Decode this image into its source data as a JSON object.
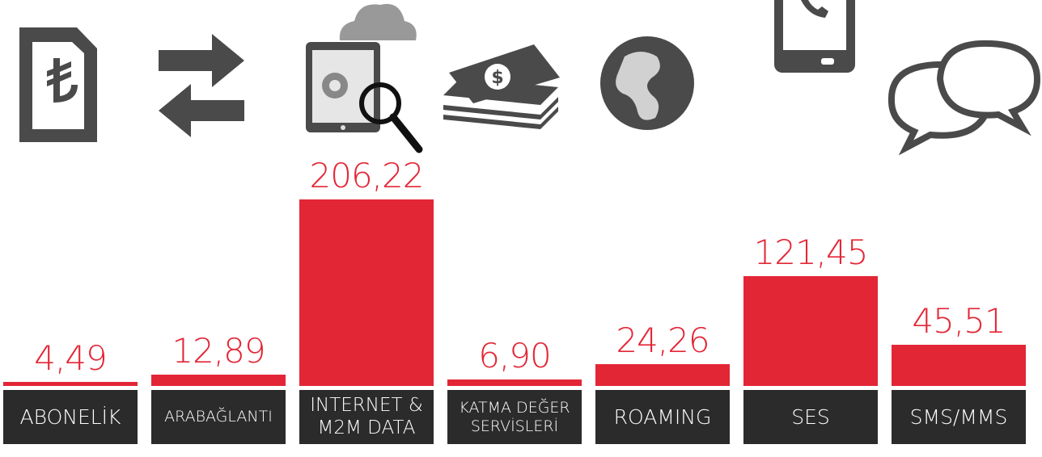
{
  "chart_data": {
    "type": "bar",
    "categories": [
      "ABONELİK",
      "ARABAĞLANTI",
      "INTERNET &\nM2M DATA",
      "KATMA DEĞER\nSERVİSLERİ",
      "ROAMING",
      "SES",
      "SMS/MMS"
    ],
    "values": [
      4.49,
      12.89,
      206.22,
      6.9,
      24.26,
      121.45,
      45.51
    ],
    "value_labels": [
      "4,49",
      "12,89",
      "206,22",
      "6,90",
      "24,26",
      "121,45",
      "45,51"
    ],
    "color": "#e32636",
    "ylim": [
      0,
      210
    ]
  }
}
